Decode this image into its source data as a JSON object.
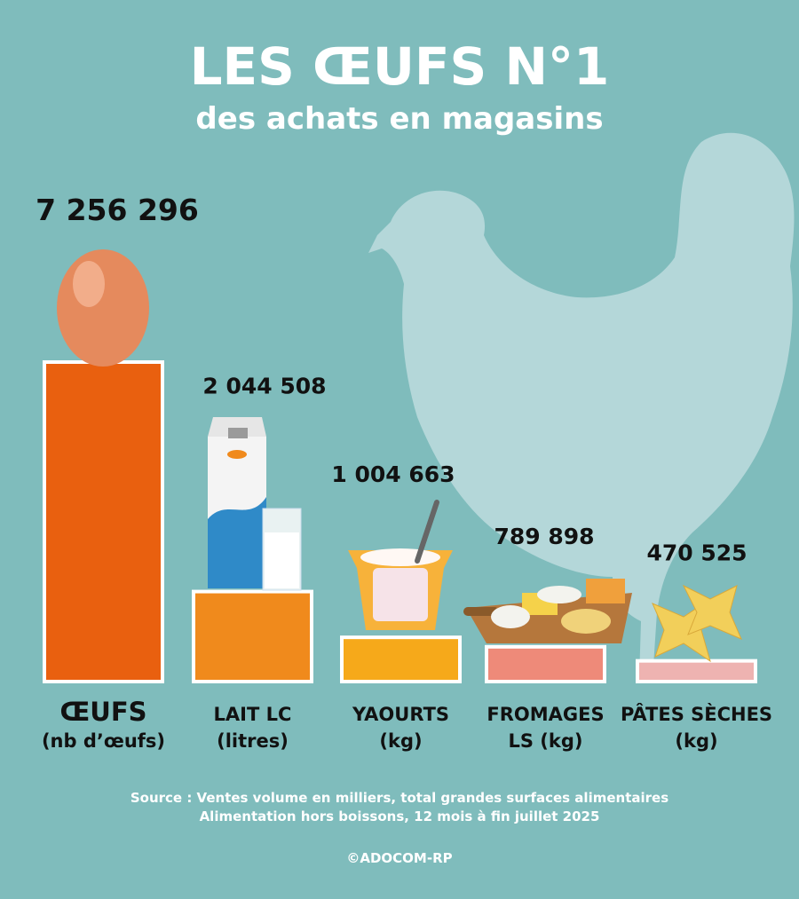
{
  "chart_data": {
    "type": "bar",
    "title": "LES ŒUFS N°1",
    "subtitle": "des achats en magasins",
    "categories": [
      "ŒUFS",
      "LAIT LC",
      "YAOURTS",
      "FROMAGES",
      "PÂTES SÈCHES"
    ],
    "units": [
      "(nb d’œufs)",
      "(litres)",
      "(kg)",
      "LS (kg)",
      "(kg)"
    ],
    "values": [
      7256296,
      2044508,
      1004663,
      789898,
      470525
    ],
    "value_labels": [
      "7 256 296",
      "2 044 508",
      "1 004 663",
      "789 898",
      "470 525"
    ],
    "colors": [
      "#e9600f",
      "#f08a1c",
      "#f6a91a",
      "#ee8a79",
      "#eeb3b1"
    ],
    "source": [
      "Source : Ventes volume en milliers, total grandes surfaces alimentaires",
      "Alimentation hors boissons, 12 mois à fin juillet 2025"
    ],
    "credit": "©ADOCOM-RP"
  }
}
